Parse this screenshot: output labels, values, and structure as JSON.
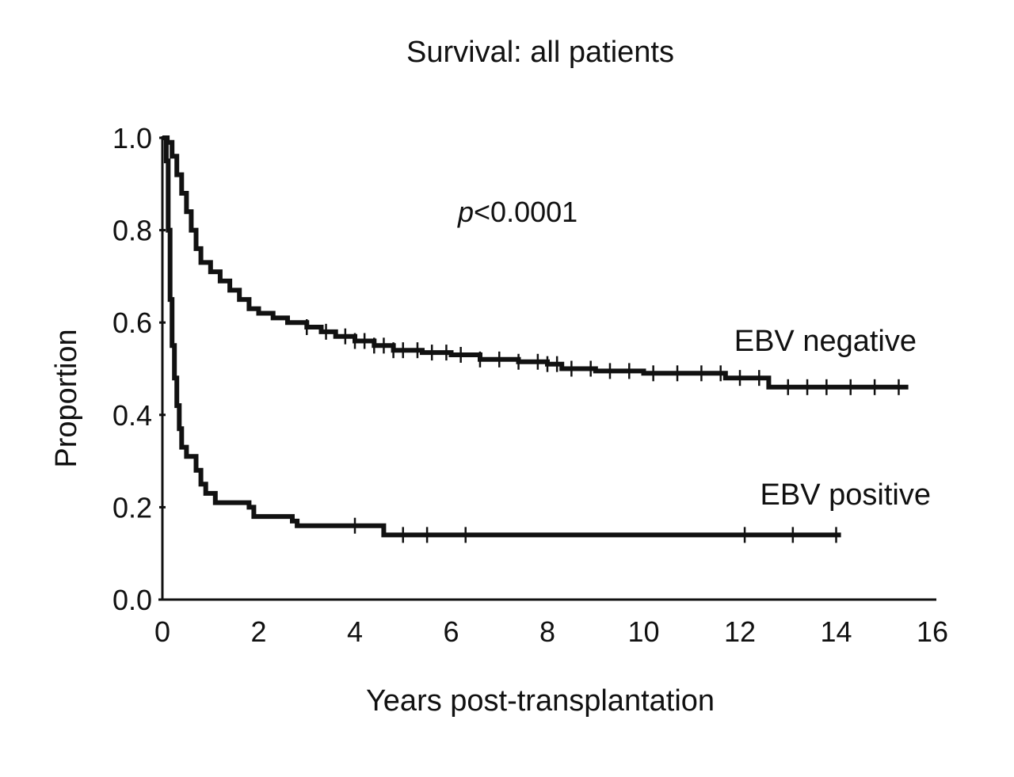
{
  "chart_data": {
    "type": "line",
    "subtype": "kaplan-meier",
    "title": "Survival: all patients",
    "xlabel": "Years post-transplantation",
    "ylabel": "Proportion",
    "xlim": [
      0,
      16
    ],
    "ylim": [
      0,
      1
    ],
    "xticks": [
      "0",
      "2",
      "4",
      "6",
      "8",
      "10",
      "12",
      "14",
      "16"
    ],
    "yticks": [
      "0.0",
      "0.2",
      "0.4",
      "0.6",
      "0.8",
      "1.0"
    ],
    "grid": false,
    "annotation": {
      "p_symbol": "p",
      "p_value": "<0.0001"
    },
    "series": [
      {
        "name": "EBV negative",
        "steps": [
          [
            0.0,
            1.0
          ],
          [
            0.1,
            0.99
          ],
          [
            0.2,
            0.96
          ],
          [
            0.3,
            0.92
          ],
          [
            0.4,
            0.88
          ],
          [
            0.5,
            0.84
          ],
          [
            0.6,
            0.8
          ],
          [
            0.7,
            0.76
          ],
          [
            0.8,
            0.73
          ],
          [
            1.0,
            0.71
          ],
          [
            1.2,
            0.69
          ],
          [
            1.4,
            0.67
          ],
          [
            1.6,
            0.65
          ],
          [
            1.8,
            0.63
          ],
          [
            2.0,
            0.62
          ],
          [
            2.3,
            0.61
          ],
          [
            2.6,
            0.6
          ],
          [
            3.0,
            0.59
          ],
          [
            3.3,
            0.58
          ],
          [
            3.6,
            0.57
          ],
          [
            4.0,
            0.56
          ],
          [
            4.4,
            0.55
          ],
          [
            4.8,
            0.54
          ],
          [
            5.4,
            0.535
          ],
          [
            6.0,
            0.53
          ],
          [
            6.6,
            0.52
          ],
          [
            7.4,
            0.515
          ],
          [
            8.0,
            0.51
          ],
          [
            8.3,
            0.5
          ],
          [
            9.0,
            0.495
          ],
          [
            10.0,
            0.49
          ],
          [
            11.7,
            0.48
          ],
          [
            12.6,
            0.46
          ],
          [
            15.5,
            0.46
          ]
        ],
        "censor_x": [
          3.0,
          3.4,
          3.8,
          4.0,
          4.2,
          4.4,
          4.6,
          4.8,
          5.0,
          5.3,
          5.6,
          5.9,
          6.2,
          6.6,
          7.0,
          7.4,
          7.8,
          8.0,
          8.2,
          8.5,
          8.9,
          9.3,
          9.7,
          10.2,
          10.7,
          11.2,
          11.6,
          12.0,
          12.4,
          13.0,
          13.4,
          13.8,
          14.3,
          14.8,
          15.3
        ]
      },
      {
        "name": "EBV positive",
        "steps": [
          [
            0.0,
            1.0
          ],
          [
            0.08,
            0.95
          ],
          [
            0.12,
            0.8
          ],
          [
            0.16,
            0.65
          ],
          [
            0.2,
            0.55
          ],
          [
            0.25,
            0.48
          ],
          [
            0.3,
            0.42
          ],
          [
            0.35,
            0.37
          ],
          [
            0.4,
            0.33
          ],
          [
            0.5,
            0.31
          ],
          [
            0.7,
            0.28
          ],
          [
            0.8,
            0.25
          ],
          [
            0.9,
            0.23
          ],
          [
            1.1,
            0.21
          ],
          [
            1.8,
            0.2
          ],
          [
            1.9,
            0.18
          ],
          [
            2.7,
            0.17
          ],
          [
            2.8,
            0.16
          ],
          [
            4.6,
            0.14
          ],
          [
            14.1,
            0.14
          ]
        ],
        "censor_x": [
          4.0,
          5.0,
          5.5,
          6.3,
          12.1,
          13.1,
          14.0
        ]
      }
    ]
  }
}
